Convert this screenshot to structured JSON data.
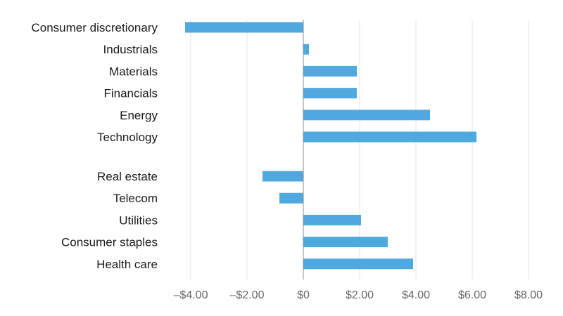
{
  "chart_data": {
    "type": "bar",
    "orientation": "horizontal",
    "categories": [
      "Consumer discretionary",
      "Industrials",
      "Materials",
      "Financials",
      "Energy",
      "Technology",
      "Real estate",
      "Telecom",
      "Utilities",
      "Consumer staples",
      "Health care"
    ],
    "groups": [
      [
        "Consumer discretionary",
        "Industrials",
        "Materials",
        "Financials",
        "Energy",
        "Technology"
      ],
      [
        "Real estate",
        "Telecom",
        "Utilities",
        "Consumer staples",
        "Health care"
      ]
    ],
    "values": [
      -4.2,
      0.2,
      1.9,
      1.9,
      4.5,
      6.15,
      -1.45,
      -0.85,
      2.05,
      3.0,
      3.9
    ],
    "xlim": [
      -4.0,
      8.0
    ],
    "xticks": [
      -4.0,
      -2.0,
      0,
      2.0,
      4.0,
      6.0,
      8.0
    ],
    "xtick_labels": [
      "–$4.00",
      "–$2.00",
      "$0",
      "$2.00",
      "$4.00",
      "$6.00",
      "$8.00"
    ],
    "grid": "vertical",
    "bar_color": "#4fa9de",
    "title": "",
    "xlabel": "",
    "ylabel": ""
  }
}
